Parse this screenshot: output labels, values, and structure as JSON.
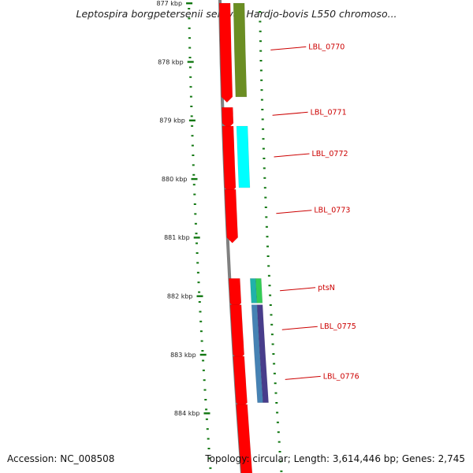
{
  "title": "Leptospira borgpetersenii serovar Hardjo-bovis L550 chromoso...",
  "footer": {
    "accession": "Accession: NC_008508",
    "stats": "Topology: circular; Length: 3,614,446 bp; Genes: 2,745"
  },
  "colors": {
    "cds": "#ff0000",
    "backbone": "#808080",
    "gc_ticks": "#117711",
    "label_line": "#cc0000",
    "cog_olive": "#6b8e23",
    "cog_cyan": "#00ffff",
    "cog_teal": "#20b2aa",
    "cog_green": "#33cc55",
    "cog_steelblue": "#4682b4",
    "cog_slate": "#483d8b"
  },
  "ruler": {
    "unit": "kbp",
    "ticks": [
      {
        "kbp": 877,
        "label": "877 kbp"
      },
      {
        "kbp": 878,
        "label": "878 kbp"
      },
      {
        "kbp": 879,
        "label": "879 kbp"
      },
      {
        "kbp": 880,
        "label": "880 kbp"
      },
      {
        "kbp": 881,
        "label": "881 kbp"
      },
      {
        "kbp": 882,
        "label": "882 kbp"
      },
      {
        "kbp": 883,
        "label": "883 kbp"
      },
      {
        "kbp": 884,
        "label": "884 kbp"
      }
    ]
  },
  "genes": [
    {
      "name": "LBL_0770",
      "start_kbp": 877.0,
      "end_kbp": 878.6,
      "strand": "+",
      "cog": "cog_olive",
      "cog_start_kbp": 877.0,
      "cog_end_kbp": 878.6
    },
    {
      "name": "LBL_0771",
      "start_kbp": 878.78,
      "end_kbp": 879.05,
      "strand": "+"
    },
    {
      "name": "LBL_0772",
      "start_kbp": 879.1,
      "end_kbp": 880.15,
      "strand": "+",
      "cog": "cog_cyan",
      "cog_start_kbp": 879.1,
      "cog_end_kbp": 880.15
    },
    {
      "name": "LBL_0773",
      "start_kbp": 880.18,
      "end_kbp": 881.0,
      "strand": "+"
    },
    {
      "name": "ptsN",
      "start_kbp": 881.7,
      "end_kbp": 882.12,
      "strand": "+",
      "cog": "cog_teal",
      "cog_start_kbp": 881.7,
      "cog_end_kbp": 882.12,
      "cog2": "cog_green"
    },
    {
      "name": "LBL_0775",
      "start_kbp": 882.15,
      "end_kbp": 883.0,
      "strand": "+",
      "cog": "cog_steelblue",
      "cog_start_kbp": 882.15,
      "cog_end_kbp": 883.82,
      "cog2": "cog_slate"
    },
    {
      "name": "LBL_0776",
      "start_kbp": 883.03,
      "end_kbp": 883.82,
      "strand": "+"
    },
    {
      "name": "",
      "start_kbp": 883.85,
      "end_kbp": 885.2,
      "strand": "+"
    }
  ]
}
